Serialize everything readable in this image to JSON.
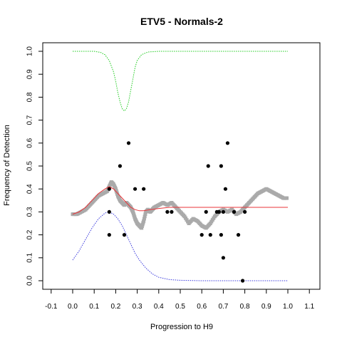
{
  "chart_data": {
    "type": "scatter",
    "title": "ETV5 - Normals-2",
    "xlabel": "Progression to H9",
    "ylabel": "Frequency of Detection",
    "xlim": [
      -0.1,
      1.1
    ],
    "ylim": [
      0.0,
      1.0
    ],
    "x_ticks": [
      "-0.1",
      "0.0",
      "0.1",
      "0.2",
      "0.3",
      "0.4",
      "0.5",
      "0.6",
      "0.7",
      "0.8",
      "0.9",
      "1.0",
      "1.1"
    ],
    "y_ticks": [
      "0.0",
      "0.1",
      "0.2",
      "0.3",
      "0.4",
      "0.5",
      "0.6",
      "0.7",
      "0.8",
      "0.9",
      "1.0"
    ],
    "grid": false,
    "series": [
      {
        "kind": "points",
        "color": "#000000",
        "x": [
          0.17,
          0.17,
          0.17,
          0.22,
          0.24,
          0.26,
          0.29,
          0.33,
          0.44,
          0.46,
          0.6,
          0.62,
          0.63,
          0.64,
          0.67,
          0.68,
          0.69,
          0.69,
          0.7,
          0.7,
          0.71,
          0.72,
          0.75,
          0.77,
          0.79,
          0.8
        ],
        "y": [
          0.4,
          0.3,
          0.2,
          0.5,
          0.2,
          0.6,
          0.4,
          0.4,
          0.3,
          0.3,
          0.2,
          0.3,
          0.5,
          0.2,
          0.3,
          0.3,
          0.5,
          0.2,
          0.1,
          0.3,
          0.4,
          0.6,
          0.3,
          0.2,
          0.0,
          0.3
        ]
      },
      {
        "kind": "gray-trace",
        "color": "#aaaaaa",
        "x": [
          0.0,
          0.02,
          0.04,
          0.06,
          0.08,
          0.1,
          0.12,
          0.14,
          0.16,
          0.17,
          0.18,
          0.19,
          0.2,
          0.21,
          0.22,
          0.23,
          0.24,
          0.25,
          0.26,
          0.27,
          0.28,
          0.29,
          0.3,
          0.31,
          0.32,
          0.33,
          0.34,
          0.35,
          0.36,
          0.37,
          0.38,
          0.4,
          0.42,
          0.44,
          0.46,
          0.48,
          0.5,
          0.52,
          0.54,
          0.56,
          0.58,
          0.6,
          0.62,
          0.64,
          0.66,
          0.68,
          0.7,
          0.72,
          0.74,
          0.76,
          0.78,
          0.8,
          0.82,
          0.84,
          0.86,
          0.88,
          0.9,
          0.92,
          0.94,
          0.96,
          0.98,
          1.0
        ],
        "y": [
          0.29,
          0.29,
          0.3,
          0.31,
          0.33,
          0.35,
          0.37,
          0.38,
          0.39,
          0.41,
          0.43,
          0.42,
          0.4,
          0.37,
          0.35,
          0.34,
          0.33,
          0.34,
          0.33,
          0.32,
          0.3,
          0.27,
          0.25,
          0.24,
          0.23,
          0.26,
          0.3,
          0.31,
          0.3,
          0.31,
          0.32,
          0.33,
          0.34,
          0.33,
          0.34,
          0.32,
          0.3,
          0.28,
          0.25,
          0.27,
          0.26,
          0.24,
          0.23,
          0.25,
          0.28,
          0.3,
          0.31,
          0.3,
          0.31,
          0.29,
          0.3,
          0.32,
          0.34,
          0.36,
          0.38,
          0.39,
          0.4,
          0.39,
          0.38,
          0.37,
          0.36,
          0.36
        ]
      },
      {
        "kind": "line",
        "color": "#e8363a",
        "style": "solid",
        "x": [
          0.0,
          0.03,
          0.06,
          0.09,
          0.12,
          0.15,
          0.17,
          0.19,
          0.21,
          0.23,
          0.25,
          0.27,
          0.29,
          0.31,
          0.33,
          0.36,
          0.4,
          0.45,
          0.5,
          0.6,
          0.7,
          0.8,
          0.9,
          1.0
        ],
        "y": [
          0.29,
          0.3,
          0.32,
          0.35,
          0.38,
          0.4,
          0.41,
          0.4,
          0.38,
          0.36,
          0.34,
          0.32,
          0.31,
          0.305,
          0.305,
          0.31,
          0.315,
          0.32,
          0.32,
          0.32,
          0.32,
          0.32,
          0.32,
          0.32
        ]
      },
      {
        "kind": "line",
        "color": "#3b3bdd",
        "style": "dotted",
        "x": [
          0.0,
          0.03,
          0.06,
          0.09,
          0.12,
          0.15,
          0.17,
          0.19,
          0.21,
          0.23,
          0.25,
          0.27,
          0.29,
          0.31,
          0.34,
          0.37,
          0.4,
          0.45,
          0.5,
          0.6,
          0.7,
          0.8,
          0.9,
          1.0
        ],
        "y": [
          0.09,
          0.13,
          0.18,
          0.23,
          0.27,
          0.295,
          0.3,
          0.29,
          0.27,
          0.24,
          0.2,
          0.16,
          0.12,
          0.09,
          0.055,
          0.03,
          0.015,
          0.005,
          0.002,
          0.0,
          0.0,
          0.0,
          0.0,
          0.0
        ]
      },
      {
        "kind": "line",
        "color": "#22cc22",
        "style": "dotted",
        "x": [
          0.0,
          0.05,
          0.1,
          0.13,
          0.15,
          0.17,
          0.19,
          0.2,
          0.21,
          0.22,
          0.23,
          0.24,
          0.25,
          0.26,
          0.27,
          0.28,
          0.29,
          0.3,
          0.32,
          0.35,
          0.4,
          0.5,
          0.6,
          0.7,
          0.8,
          0.9,
          1.0
        ],
        "y": [
          1.0,
          1.0,
          1.0,
          0.995,
          0.985,
          0.96,
          0.91,
          0.87,
          0.82,
          0.78,
          0.75,
          0.74,
          0.75,
          0.78,
          0.83,
          0.88,
          0.93,
          0.96,
          0.985,
          0.997,
          1.0,
          1.0,
          1.0,
          1.0,
          1.0,
          1.0,
          1.0
        ]
      }
    ]
  }
}
